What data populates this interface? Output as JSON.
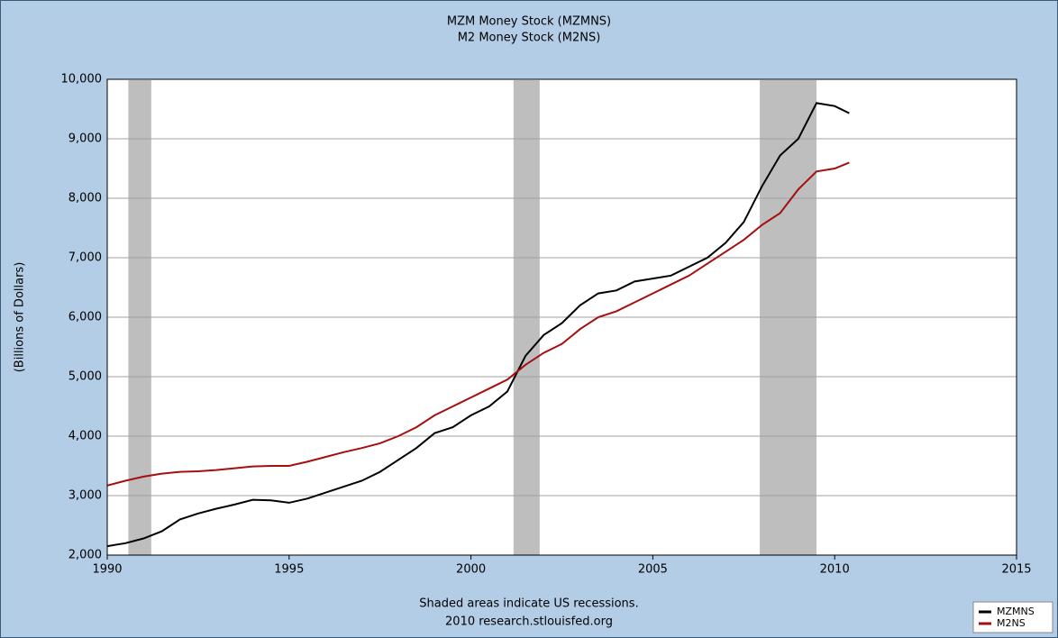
{
  "chart_data": {
    "type": "line",
    "title": "MZM Money Stock (MZMNS)",
    "subtitle": "M2 Money Stock (M2NS)",
    "y_label": "(Billions of Dollars)",
    "notes": [
      "Shaded areas indicate US recessions.",
      "2010 research.stlouisfed.org"
    ],
    "x": [
      1990,
      1990.5,
      1991,
      1991.5,
      1992,
      1992.5,
      1993,
      1993.5,
      1994,
      1994.5,
      1995,
      1995.5,
      1996,
      1996.5,
      1997,
      1997.5,
      1998,
      1998.5,
      1999,
      1999.5,
      2000,
      2000.5,
      2001,
      2001.5,
      2002,
      2002.5,
      2003,
      2003.5,
      2004,
      2004.5,
      2005,
      2005.5,
      2006,
      2006.5,
      2007,
      2007.5,
      2008,
      2008.5,
      2009,
      2009.5,
      2010,
      2010.4
    ],
    "series": [
      {
        "name": "MZMNS",
        "color": "#000000",
        "values": [
          2150,
          2200,
          2280,
          2400,
          2600,
          2700,
          2780,
          2850,
          2930,
          2920,
          2880,
          2950,
          3050,
          3150,
          3250,
          3400,
          3600,
          3800,
          4050,
          4150,
          4350,
          4500,
          4750,
          5350,
          5700,
          5900,
          6200,
          6400,
          6450,
          6600,
          6650,
          6700,
          6850,
          7000,
          7250,
          7600,
          8200,
          8720,
          9000,
          9600,
          9550,
          9430
        ]
      },
      {
        "name": "M2NS",
        "color": "#a50f0f",
        "values": [
          3170,
          3250,
          3320,
          3370,
          3400,
          3410,
          3430,
          3460,
          3490,
          3500,
          3500,
          3570,
          3650,
          3730,
          3800,
          3880,
          4000,
          4150,
          4350,
          4500,
          4650,
          4800,
          4950,
          5200,
          5400,
          5550,
          5800,
          6000,
          6100,
          6250,
          6400,
          6550,
          6700,
          6900,
          7100,
          7300,
          7550,
          7750,
          8150,
          8450,
          8500,
          8600
        ]
      }
    ],
    "shaded_ranges": [
      [
        1990.58,
        1991.21
      ],
      [
        2001.17,
        2001.89
      ],
      [
        2007.94,
        2009.5
      ]
    ],
    "shade_color": "#bebebe",
    "xlim": [
      1990,
      2015
    ],
    "xticks": [
      1990,
      1995,
      2000,
      2005,
      2010,
      2015
    ],
    "ylim": [
      2000,
      10000
    ],
    "yticks": [
      {
        "value": 2000,
        "label": "2,000"
      },
      {
        "value": 3000,
        "label": "3,000"
      },
      {
        "value": 4000,
        "label": "4,000"
      },
      {
        "value": 5000,
        "label": "5,000"
      },
      {
        "value": 6000,
        "label": "6,000"
      },
      {
        "value": 7000,
        "label": "7,000"
      },
      {
        "value": 8000,
        "label": "8,000"
      },
      {
        "value": 9000,
        "label": "9,000"
      },
      {
        "value": 10000,
        "label": "10,000"
      }
    ],
    "grid": true,
    "legend": "bottom-right"
  }
}
